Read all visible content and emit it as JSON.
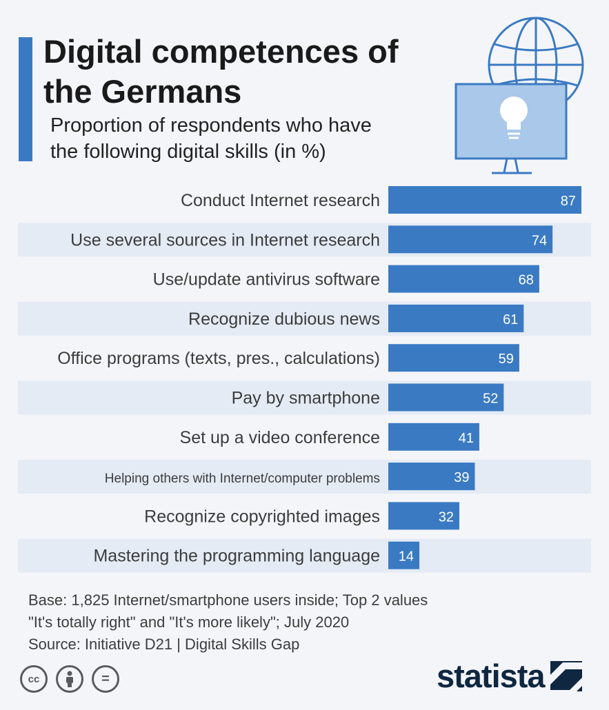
{
  "header": {
    "title_line1": "Digital competences of",
    "title_line2": "the Germans",
    "subtitle_line1": "Proportion of respondents who have",
    "subtitle_line2": "the following digital skills (in %)"
  },
  "colors": {
    "bar": "#3a7ac3",
    "accent": "#3a7ac3",
    "row_band": "#e4ebf5",
    "background": "#f4f5f9"
  },
  "chart_data": {
    "type": "bar",
    "orientation": "horizontal",
    "categories": [
      "Conduct Internet research",
      "Use several sources in Internet research",
      "Use/update antivirus software",
      "Recognize dubious news",
      "Office programs (texts, pres., calculations)",
      "Pay by smartphone",
      "Set up a video conference",
      "Helping others with Internet/computer problems",
      "Recognize copyrighted images",
      "Mastering the programming language"
    ],
    "values": [
      87,
      74,
      68,
      61,
      59,
      52,
      41,
      39,
      32,
      14
    ],
    "title": "Digital competences of the Germans",
    "subtitle": "Proportion of respondents who have the following digital skills (in %)",
    "xlim": [
      0,
      100
    ],
    "data_labels": true,
    "grid": false,
    "legend": "none"
  },
  "footer": {
    "base_line1": "Base: 1,825 Internet/smartphone users inside; Top 2 values",
    "base_line2": "\"It's totally right\" and \"It's more likely\"; July 2020",
    "source": "Source: Initiative D21 | Digital Skills Gap",
    "logo_text": "statista"
  },
  "icons": {
    "cc": "cc-icon",
    "by": "person-icon",
    "nd": "equals-icon",
    "illustration": "globe-monitor-lightbulb-icon",
    "logo_mark": "statista-mark-icon"
  },
  "cc_labels": {
    "cc": "cc",
    "nd": "="
  }
}
